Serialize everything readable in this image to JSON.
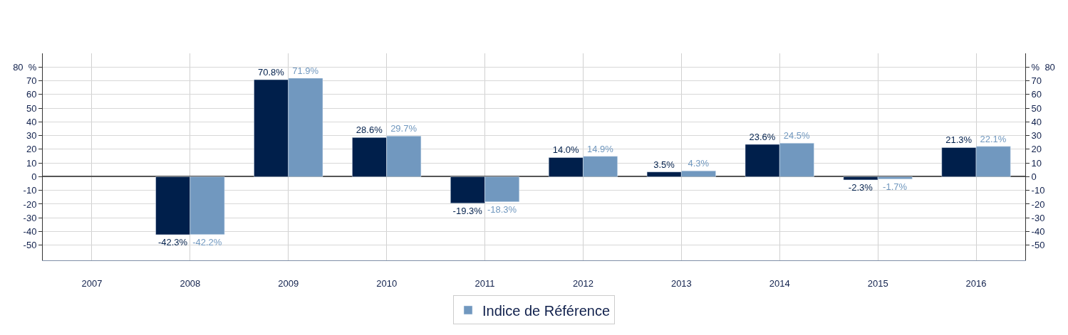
{
  "chart_data": {
    "type": "bar",
    "categories": [
      "2007",
      "2008",
      "2009",
      "2010",
      "2011",
      "2012",
      "2013",
      "2014",
      "2015",
      "2016"
    ],
    "series": [
      {
        "color": "#001f4b",
        "values": [
          null,
          -42.3,
          70.8,
          28.6,
          -19.3,
          14.0,
          3.5,
          23.6,
          -2.3,
          21.3
        ],
        "value_labels": [
          null,
          "-42.3%",
          "70.8%",
          "28.6%",
          "-19.3%",
          "14.0%",
          "3.5%",
          "23.6%",
          "-2.3%",
          "21.3%"
        ]
      },
      {
        "name": "Indice de Référence",
        "color": "#7198bf",
        "values": [
          null,
          -42.2,
          71.9,
          29.7,
          -18.3,
          14.9,
          4.3,
          24.5,
          -1.7,
          22.1
        ],
        "value_labels": [
          null,
          "-42.2%",
          "71.9%",
          "29.7%",
          "-18.3%",
          "14.9%",
          "4.3%",
          "24.5%",
          "-1.7%",
          "22.1%"
        ]
      }
    ],
    "ylim": [
      -61,
      90
    ],
    "yticks": [
      -50,
      -40,
      -30,
      -20,
      -10,
      0,
      10,
      20,
      30,
      40,
      50,
      60,
      70,
      {
        "value": 80,
        "label": "80  %"
      }
    ],
    "y2lim": [
      -61,
      90
    ],
    "y2ticks": [
      -50,
      -40,
      -30,
      -20,
      -10,
      0,
      10,
      20,
      30,
      40,
      50,
      60,
      70,
      {
        "value": 80,
        "label": "%  80"
      }
    ],
    "grid": true,
    "legend": "bottom"
  }
}
